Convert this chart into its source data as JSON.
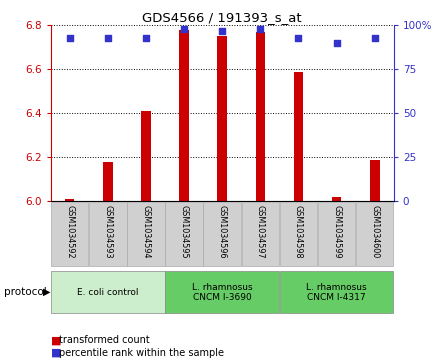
{
  "title": "GDS4566 / 191393_s_at",
  "samples": [
    "GSM1034592",
    "GSM1034593",
    "GSM1034594",
    "GSM1034595",
    "GSM1034596",
    "GSM1034597",
    "GSM1034598",
    "GSM1034599",
    "GSM1034600"
  ],
  "transformed_counts": [
    6.01,
    6.18,
    6.41,
    6.78,
    6.75,
    6.77,
    6.59,
    6.02,
    6.19
  ],
  "percentile_ranks": [
    93,
    93,
    93,
    98,
    97,
    98,
    93,
    90,
    93
  ],
  "groups": [
    {
      "label": "E. coli control",
      "start": 0,
      "end": 3,
      "color": "#cceecc"
    },
    {
      "label": "L. rhamnosus\nCNCM I-3690",
      "start": 3,
      "end": 6,
      "color": "#66cc66"
    },
    {
      "label": "L. rhamnosus\nCNCM I-4317",
      "start": 6,
      "end": 9,
      "color": "#66cc66"
    }
  ],
  "ylim_left": [
    6.0,
    6.8
  ],
  "ylim_right": [
    0,
    100
  ],
  "yticks_left": [
    6.0,
    6.2,
    6.4,
    6.6,
    6.8
  ],
  "yticks_right": [
    0,
    25,
    50,
    75,
    100
  ],
  "bar_color": "#cc0000",
  "dot_color": "#3333cc",
  "bar_width": 0.25,
  "dot_size": 25,
  "left_tick_color": "#cc0000",
  "right_tick_color": "#3333cc",
  "protocol_label": "protocol",
  "legend_bar_label": "transformed count",
  "legend_dot_label": "percentile rank within the sample",
  "sample_box_color": "#d0d0d0",
  "plot_bg": "#ffffff"
}
